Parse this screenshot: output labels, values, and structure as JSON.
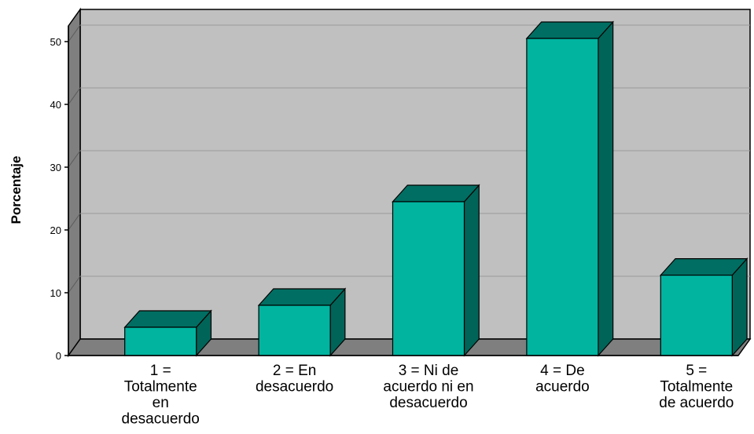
{
  "chart_data": {
    "type": "bar",
    "ylabel": "Porcentaje",
    "xlabel": "",
    "ylim": [
      0,
      50
    ],
    "yticks": [
      0,
      10,
      20,
      30,
      40,
      50
    ],
    "categories": [
      [
        "1 =",
        "Totalmente",
        "en",
        "desacuerdo"
      ],
      [
        "2 = En",
        "desacuerdo"
      ],
      [
        "3 = Ni de",
        "acuerdo ni en",
        "desacuerdo"
      ],
      [
        "4 = De",
        "acuerdo"
      ],
      [
        "5 =",
        "Totalmente",
        "de acuerdo"
      ]
    ],
    "values": [
      4.5,
      8,
      24.5,
      50.5,
      12.8
    ],
    "grid": true,
    "legend": "none",
    "style": "3d",
    "colors": {
      "bar_front": "#00B4A0",
      "bar_top": "#006E62",
      "bar_side": "#006458",
      "plot_back": "#C0C0C0",
      "left_wall": "#7F7F7F",
      "floor": "#7F7F7F"
    }
  }
}
